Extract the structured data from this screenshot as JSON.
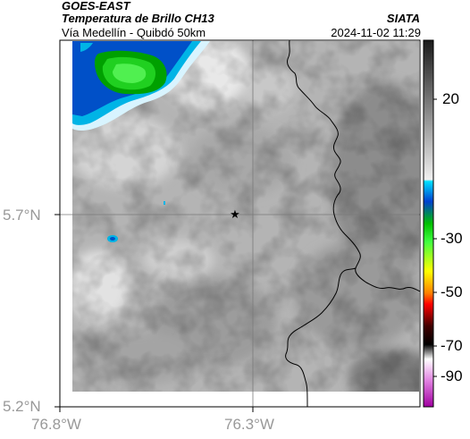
{
  "header": {
    "satellite": "GOES-EAST",
    "product": "Temperatura de Brillo CH13",
    "region": "Vía Medellín - Quibdó 50km",
    "org": "SIATA",
    "datetime": "2024-11-02 11:29"
  },
  "map": {
    "lat_ticks": [
      "5.7°N",
      "5.2°N"
    ],
    "lon_ticks": [
      "76.8°W",
      "76.3°W"
    ],
    "marker": "star-icon",
    "colors": {
      "background_gray": "#b4b4b4",
      "cloud_cyan": "#00b4e6",
      "cloud_blue": "#0050c8",
      "cloud_green": "#00c800",
      "border": "#000000",
      "gridline": "#808080"
    }
  },
  "colorbar": {
    "ticks": [
      "20",
      "-30",
      "-50",
      "-70",
      "-90"
    ],
    "stops": [
      "#000000",
      "#ffffff",
      "#00ffff",
      "#0000ff",
      "#00ff00",
      "#ffff00",
      "#ff0000",
      "#000000",
      "#ffffff",
      "#ff00ff"
    ]
  }
}
